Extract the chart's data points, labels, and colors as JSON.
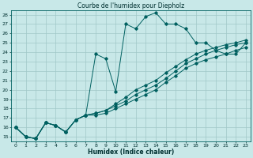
{
  "title": "Courbe de l'humidex pour Diepholz",
  "xlabel": "Humidex (Indice chaleur)",
  "bg_color": "#c8e8e8",
  "line_color": "#006060",
  "grid_color": "#a0c8c8",
  "xlim": [
    -0.5,
    23.5
  ],
  "ylim": [
    14.5,
    28.5
  ],
  "xticks": [
    0,
    1,
    2,
    3,
    4,
    5,
    6,
    7,
    8,
    9,
    10,
    11,
    12,
    13,
    14,
    15,
    16,
    17,
    18,
    19,
    20,
    21,
    22,
    23
  ],
  "yticks": [
    15,
    16,
    17,
    18,
    19,
    20,
    21,
    22,
    23,
    24,
    25,
    26,
    27,
    28
  ],
  "series": [
    [
      16.0,
      15.0,
      14.8,
      16.5,
      16.2,
      15.5,
      16.8,
      17.3,
      23.8,
      23.3,
      19.8,
      27.0,
      26.5,
      27.8,
      28.2,
      27.0,
      27.0,
      26.5,
      25.0,
      25.0,
      24.2,
      23.8,
      23.8,
      25.0
    ],
    [
      16.0,
      15.0,
      14.8,
      16.5,
      16.2,
      15.5,
      16.8,
      17.3,
      17.5,
      17.8,
      18.5,
      19.2,
      20.0,
      20.5,
      21.0,
      21.8,
      22.5,
      23.2,
      23.8,
      24.2,
      24.5,
      24.8,
      25.0,
      25.3
    ],
    [
      16.0,
      15.0,
      14.8,
      16.5,
      16.2,
      15.5,
      16.8,
      17.3,
      17.5,
      17.8,
      18.3,
      18.8,
      19.5,
      20.0,
      20.5,
      21.2,
      22.0,
      22.8,
      23.3,
      23.8,
      24.2,
      24.5,
      24.8,
      25.0
    ],
    [
      16.0,
      15.0,
      14.8,
      16.5,
      16.2,
      15.5,
      16.8,
      17.3,
      17.3,
      17.5,
      18.0,
      18.5,
      19.0,
      19.5,
      20.0,
      20.8,
      21.5,
      22.3,
      22.8,
      23.2,
      23.5,
      23.8,
      24.2,
      24.5
    ]
  ]
}
